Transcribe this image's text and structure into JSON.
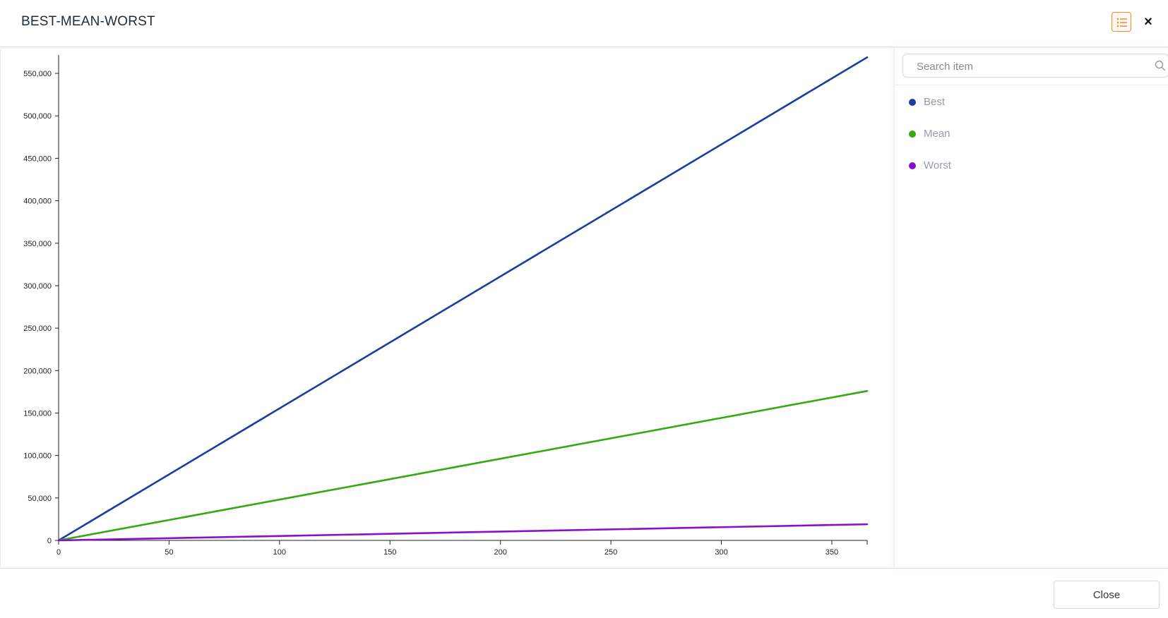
{
  "dialog": {
    "title": "BEST-MEAN-WORST",
    "close_symbol": "×",
    "legend_toggle_icon": "list-icon",
    "close_icon": "close-icon"
  },
  "legend": {
    "search_placeholder": "Search item",
    "search_icon": "search-icon",
    "items": [
      {
        "label": "Best",
        "color": "#1a3d9e"
      },
      {
        "label": "Mean",
        "color": "#33aa11"
      },
      {
        "label": "Worst",
        "color": "#8a0fcc"
      }
    ]
  },
  "footer": {
    "close_label": "Close"
  },
  "chart_data": {
    "type": "line",
    "xlabel": "",
    "ylabel": "",
    "xlim": [
      0,
      366
    ],
    "ylim": [
      0,
      570000
    ],
    "x_ticks": [
      0,
      50,
      100,
      150,
      200,
      250,
      300,
      350
    ],
    "y_ticks": [
      0,
      50000,
      100000,
      150000,
      200000,
      250000,
      300000,
      350000,
      400000,
      450000,
      500000,
      550000
    ],
    "x_tick_labels": [
      "0",
      "50",
      "100",
      "150",
      "200",
      "250",
      "300",
      "350"
    ],
    "y_tick_labels": [
      "0",
      "50,000",
      "100,000",
      "150,000",
      "200,000",
      "250,000",
      "300,000",
      "350,000",
      "400,000",
      "450,000",
      "500,000",
      "550,000"
    ],
    "grid": false,
    "legend_placement": "right panel",
    "series": [
      {
        "name": "Best",
        "color": "#1a3d9e",
        "x": [
          0,
          366
        ],
        "y": [
          0,
          569000
        ]
      },
      {
        "name": "Mean",
        "color": "#33aa11",
        "x": [
          0,
          366
        ],
        "y": [
          0,
          176000
        ]
      },
      {
        "name": "Worst",
        "color": "#8a0fcc",
        "x": [
          0,
          366
        ],
        "y": [
          0,
          19000
        ]
      }
    ]
  }
}
